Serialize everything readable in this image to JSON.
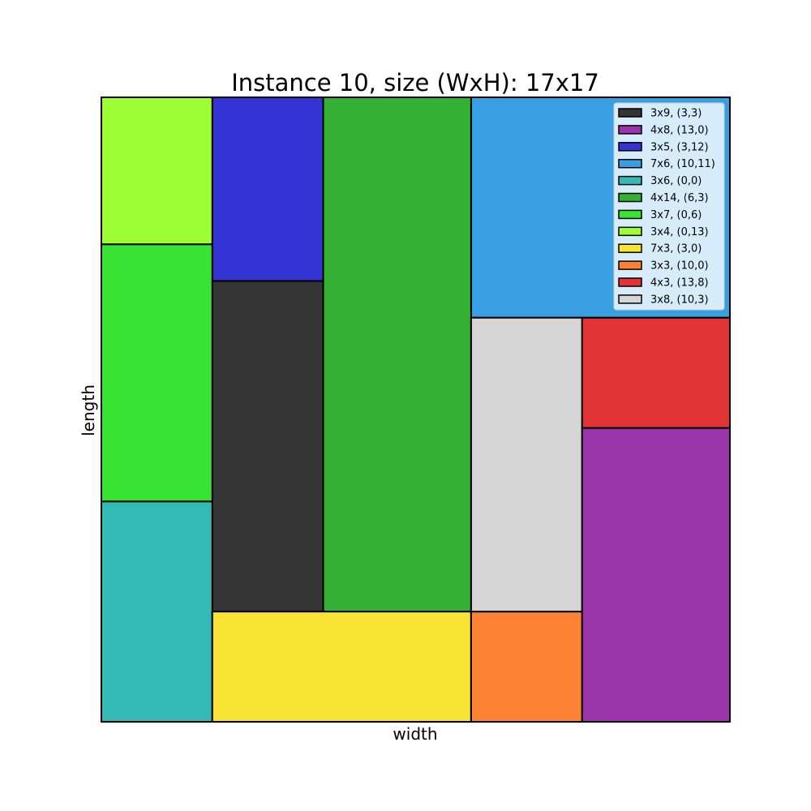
{
  "chart_data": {
    "type": "rectangle-packing",
    "title": "Instance 10, size (WxH): 17x17",
    "xlabel": "width",
    "ylabel": "length",
    "container": {
      "width": 17,
      "height": 17
    },
    "xlim": [
      0,
      17
    ],
    "ylim": [
      0,
      17
    ],
    "grid": false,
    "legend_position": "top-right",
    "rectangles": [
      {
        "label": "3x9, (3,3)",
        "w": 3,
        "h": 9,
        "x": 3,
        "y": 3,
        "color": "#353535"
      },
      {
        "label": "4x8, (13,0)",
        "w": 4,
        "h": 8,
        "x": 13,
        "y": 0,
        "color": "#9b34aa"
      },
      {
        "label": "3x5, (3,12)",
        "w": 3,
        "h": 5,
        "x": 3,
        "y": 12,
        "color": "#3434d4"
      },
      {
        "label": "7x6, (10,11)",
        "w": 7,
        "h": 6,
        "x": 10,
        "y": 11,
        "color": "#389fe3"
      },
      {
        "label": "3x6, (0,0)",
        "w": 3,
        "h": 6,
        "x": 0,
        "y": 0,
        "color": "#34bab4"
      },
      {
        "label": "4x14, (6,3)",
        "w": 4,
        "h": 14,
        "x": 6,
        "y": 3,
        "color": "#34b034"
      },
      {
        "label": "3x7, (0,6)",
        "w": 3,
        "h": 7,
        "x": 0,
        "y": 6,
        "color": "#38e334"
      },
      {
        "label": "3x4, (0,13)",
        "w": 3,
        "h": 4,
        "x": 0,
        "y": 13,
        "color": "#9efe34"
      },
      {
        "label": "7x3, (3,0)",
        "w": 7,
        "h": 3,
        "x": 3,
        "y": 0,
        "color": "#f8e334"
      },
      {
        "label": "3x3, (10,0)",
        "w": 3,
        "h": 3,
        "x": 10,
        "y": 0,
        "color": "#fe8234"
      },
      {
        "label": "4x3, (13,8)",
        "w": 4,
        "h": 3,
        "x": 13,
        "y": 8,
        "color": "#e23434"
      },
      {
        "label": "3x8, (10,3)",
        "w": 3,
        "h": 8,
        "x": 10,
        "y": 3,
        "color": "#d5d5d5"
      }
    ]
  }
}
